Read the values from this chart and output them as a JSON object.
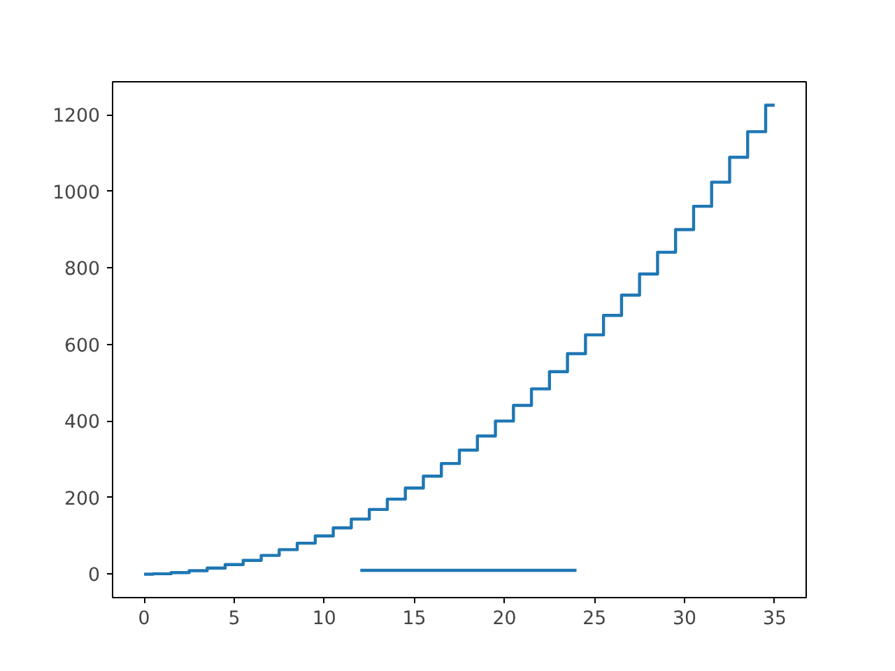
{
  "chart_data": {
    "type": "step",
    "xlim": [
      -1.75,
      36.75
    ],
    "ylim": [
      -61.25,
      1286.25
    ],
    "xticks": [
      0,
      5,
      10,
      15,
      20,
      25,
      30,
      35
    ],
    "yticks": [
      0,
      200,
      400,
      600,
      800,
      1000,
      1200
    ],
    "grid": false,
    "series": [
      {
        "color": "#1f77b4",
        "x": [
          0,
          1,
          2,
          3,
          4,
          5,
          6,
          7,
          8,
          9,
          10,
          11,
          12,
          13,
          14,
          15,
          16,
          17,
          18,
          19,
          20,
          21,
          22,
          23,
          24,
          25,
          26,
          27,
          28,
          29,
          30,
          31,
          32,
          33,
          34,
          35
        ],
        "values": [
          0,
          1,
          4,
          9,
          16,
          25,
          36,
          49,
          64,
          81,
          100,
          121,
          144,
          169,
          196,
          225,
          256,
          289,
          324,
          361,
          400,
          441,
          484,
          529,
          576,
          625,
          676,
          729,
          784,
          841,
          900,
          961,
          1024,
          1089,
          1156,
          1225
        ]
      },
      {
        "type": "line",
        "color": "#1f77b4",
        "x": [
          12,
          24
        ],
        "values": [
          10,
          10
        ]
      }
    ]
  }
}
